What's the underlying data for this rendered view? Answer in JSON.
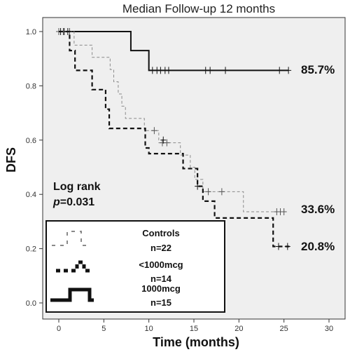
{
  "chart_data": {
    "type": "line",
    "title": "Median Follow-up 12 months",
    "xlabel": "Time (months)",
    "ylabel": "DFS",
    "xlim": [
      -2,
      31
    ],
    "ylim": [
      -0.05,
      1.05
    ],
    "x_ticks": [
      "0",
      "5",
      "10",
      "15",
      "20",
      "25",
      "30"
    ],
    "x_tick_values": [
      0,
      5,
      10,
      15,
      20,
      25,
      30
    ],
    "y_ticks": [
      "0.0",
      "0.2",
      "0.4",
      "0.6",
      "0.8",
      "1.0"
    ],
    "y_tick_values": [
      0,
      0.2,
      0.4,
      0.6,
      0.8,
      1.0
    ],
    "grid": false,
    "background": "#efefef",
    "annotation": {
      "line1": "Log rank",
      "line2_italic": "p",
      "line2_rest": "=0.031"
    },
    "series": [
      {
        "name": "1000mcg",
        "sample": "n=15",
        "color": "#111111",
        "style": "solid",
        "width": 2,
        "final_label": "85.7%",
        "steps": [
          [
            0,
            1.0
          ],
          [
            8,
            0.93
          ],
          [
            10,
            0.857
          ],
          [
            25.5,
            0.857
          ]
        ],
        "censors": [
          [
            0.2,
            1.0
          ],
          [
            0.6,
            1.0
          ],
          [
            1.0,
            1.0
          ],
          [
            10.4,
            0.857
          ],
          [
            10.9,
            0.857
          ],
          [
            11.3,
            0.857
          ],
          [
            11.8,
            0.857
          ],
          [
            12.2,
            0.857
          ],
          [
            16.3,
            0.857
          ],
          [
            16.8,
            0.857
          ],
          [
            18.5,
            0.857
          ],
          [
            24.5,
            0.857
          ],
          [
            25.5,
            0.857
          ]
        ]
      },
      {
        "name": "Controls",
        "sample": "n=22",
        "color": "#8a8a8a",
        "style": "dashed-thin",
        "width": 1,
        "final_label": "33.6%",
        "steps": [
          [
            0,
            1.0
          ],
          [
            1.7,
            0.95
          ],
          [
            3.7,
            0.905
          ],
          [
            5.7,
            0.86
          ],
          [
            6.1,
            0.815
          ],
          [
            6.6,
            0.77
          ],
          [
            7.0,
            0.725
          ],
          [
            7.4,
            0.68
          ],
          [
            9.5,
            0.635
          ],
          [
            11.1,
            0.59
          ],
          [
            13.5,
            0.545
          ],
          [
            14.6,
            0.5
          ],
          [
            15.1,
            0.455
          ],
          [
            16.0,
            0.41
          ],
          [
            17.0,
            0.41
          ],
          [
            20.5,
            0.336
          ],
          [
            25.0,
            0.336
          ]
        ],
        "censors": [
          [
            0,
            1.0
          ],
          [
            0.5,
            1.0
          ],
          [
            1.2,
            1.0
          ],
          [
            10.6,
            0.635
          ],
          [
            11.5,
            0.59
          ],
          [
            12.0,
            0.59
          ],
          [
            16.6,
            0.41
          ],
          [
            18.1,
            0.41
          ],
          [
            24.2,
            0.336
          ],
          [
            24.6,
            0.336
          ],
          [
            25.0,
            0.336
          ]
        ]
      },
      {
        "name": "<1000mcg",
        "sample": "n=14",
        "color": "#111111",
        "style": "dashed-thick",
        "width": 2.2,
        "final_label": "20.8%",
        "steps": [
          [
            0,
            1.0
          ],
          [
            1.2,
            0.93
          ],
          [
            1.8,
            0.857
          ],
          [
            3.7,
            0.786
          ],
          [
            5.2,
            0.714
          ],
          [
            5.6,
            0.643
          ],
          [
            7.5,
            0.643
          ],
          [
            9.6,
            0.571
          ],
          [
            10.0,
            0.55
          ],
          [
            13.8,
            0.495
          ],
          [
            15.4,
            0.43
          ],
          [
            16.0,
            0.375
          ],
          [
            17.3,
            0.313
          ],
          [
            23.8,
            0.208
          ],
          [
            25.6,
            0.208
          ]
        ],
        "censors": [
          [
            11.6,
            0.6
          ],
          [
            15.4,
            0.43
          ],
          [
            24.4,
            0.208
          ],
          [
            25.4,
            0.208
          ]
        ]
      }
    ],
    "legend": {
      "position": "bottom-left"
    }
  }
}
